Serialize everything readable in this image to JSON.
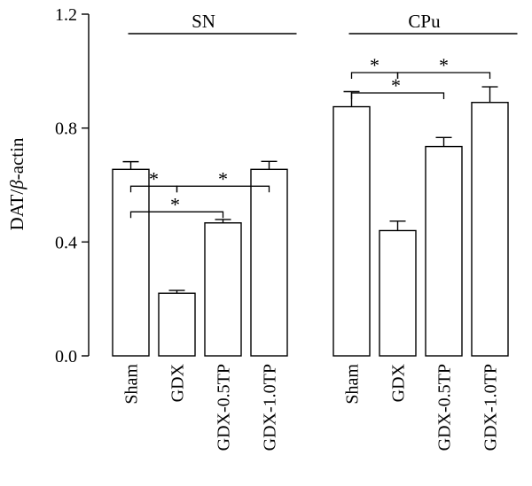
{
  "chart_data": {
    "type": "bar",
    "ylabel_main": "DAT/",
    "ylabel_italic": "β",
    "ylabel_suffix": "-actin",
    "ylim": [
      0,
      1.2
    ],
    "yticks": [
      "0.0",
      "0.4",
      "0.8",
      "1.2"
    ],
    "ytick_values": [
      0,
      0.4,
      0.8,
      1.2
    ],
    "groups": [
      {
        "label": "SN",
        "categories": [
          "Sham",
          "GDX",
          "GDX-0.5TP",
          "GDX-1.0TP"
        ],
        "values": [
          0.655,
          0.22,
          0.467,
          0.655
        ],
        "errors": [
          0.027,
          0.01,
          0.012,
          0.028
        ],
        "significance": [
          {
            "from": 0,
            "to": 1,
            "label": "*"
          },
          {
            "from": 1,
            "to": 3,
            "label": "*"
          },
          {
            "from": 0,
            "to": 2,
            "label": "*"
          }
        ]
      },
      {
        "label": "CPu",
        "categories": [
          "Sham",
          "GDX",
          "GDX-0.5TP",
          "GDX-1.0TP"
        ],
        "values": [
          0.875,
          0.44,
          0.735,
          0.89
        ],
        "errors": [
          0.053,
          0.033,
          0.032,
          0.055
        ],
        "significance": [
          {
            "from": 0,
            "to": 1,
            "label": "*"
          },
          {
            "from": 1,
            "to": 3,
            "label": "*"
          },
          {
            "from": 0,
            "to": 2,
            "label": "*"
          }
        ]
      }
    ]
  }
}
